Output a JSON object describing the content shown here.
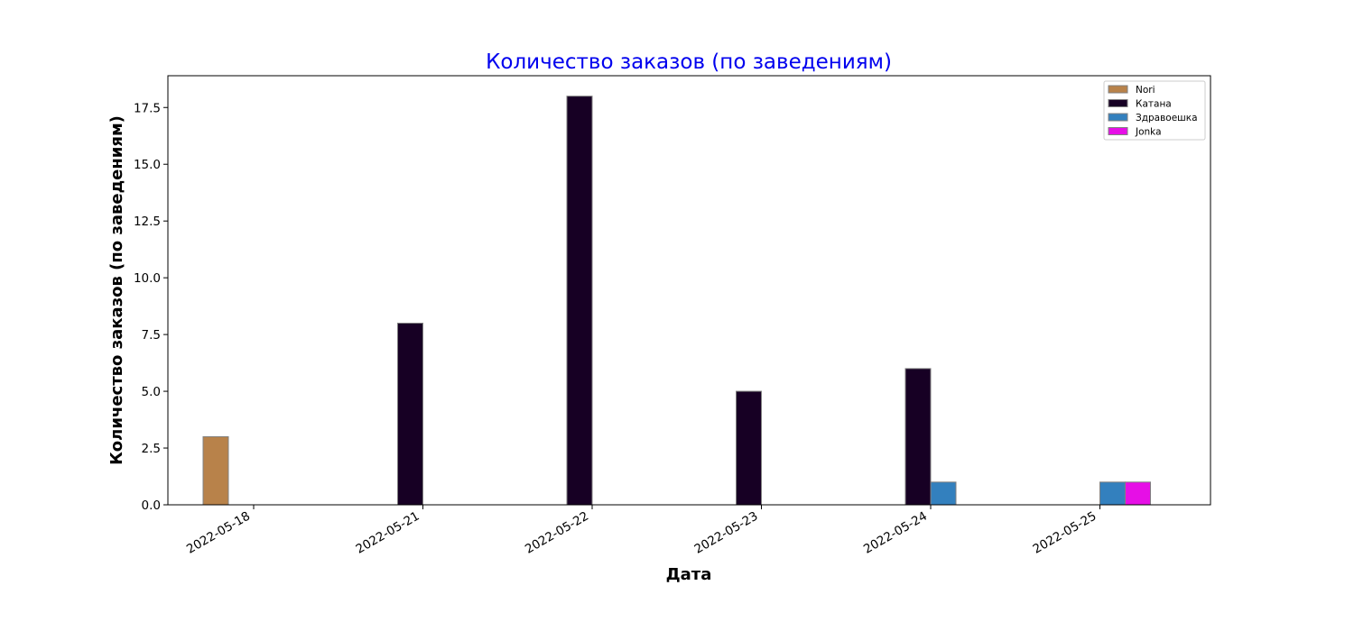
{
  "chart_data": {
    "type": "bar",
    "title": "Количество заказов (по заведениям)",
    "title_color": "#0000ee",
    "xlabel": "Дата",
    "ylabel": "Количество заказов (по заведениям)",
    "categories": [
      "2022-05-18",
      "2022-05-21",
      "2022-05-22",
      "2022-05-23",
      "2022-05-24",
      "2022-05-25"
    ],
    "ylim": [
      0,
      18.9
    ],
    "yticks": [
      0.0,
      2.5,
      5.0,
      7.5,
      10.0,
      12.5,
      15.0,
      17.5
    ],
    "ytick_labels": [
      "0.0",
      "2.5",
      "5.0",
      "7.5",
      "10.0",
      "12.5",
      "15.0",
      "17.5"
    ],
    "grid": false,
    "legend_position": "top-right",
    "series": [
      {
        "name": "Nori",
        "color": "#b8824a",
        "values": [
          3,
          0,
          0,
          0,
          0,
          0
        ]
      },
      {
        "name": "Катана",
        "color": "#170024",
        "values": [
          0,
          8,
          18,
          5,
          6,
          0
        ]
      },
      {
        "name": "Здравоешка",
        "color": "#3380be",
        "values": [
          0,
          0,
          0,
          0,
          1,
          1
        ]
      },
      {
        "name": "Jonka",
        "color": "#e60fe6",
        "values": [
          0,
          0,
          0,
          0,
          0,
          1
        ]
      }
    ]
  }
}
